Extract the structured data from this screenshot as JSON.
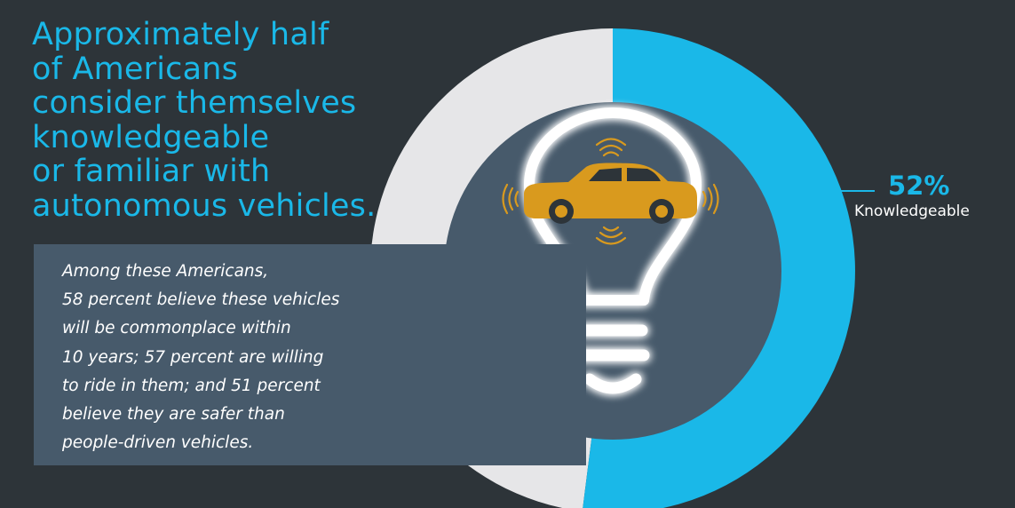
{
  "headline": {
    "lines": [
      "Approximately half",
      "of Americans",
      "consider themselves",
      "knowledgeable",
      "or familiar with",
      "autonomous vehicles."
    ]
  },
  "info": {
    "lines": [
      "Among these Americans,",
      "58 percent believe these vehicles",
      "will be commonplace within",
      "10 years; 57 percent are willing",
      "to ride in them; and 51 percent",
      "believe they are safer than",
      "people-driven vehicles."
    ]
  },
  "chart_data": {
    "type": "pie",
    "categories": [
      "Knowledgeable",
      ""
    ],
    "values": [
      52,
      48
    ],
    "value_label": "52%",
    "slice_label": "Knowledgeable",
    "legend": "right"
  },
  "colors": {
    "background": "#2d3439",
    "accent": "#1ab8e8",
    "remainder": "#e6e6e8",
    "inner_disc": "#475a6b",
    "car": "#d99a1e",
    "bulb_glow": "#ffffff"
  },
  "icons": {
    "center": "lightbulb-icon",
    "car": "car-icon",
    "signal": "signal-waves-icon"
  }
}
